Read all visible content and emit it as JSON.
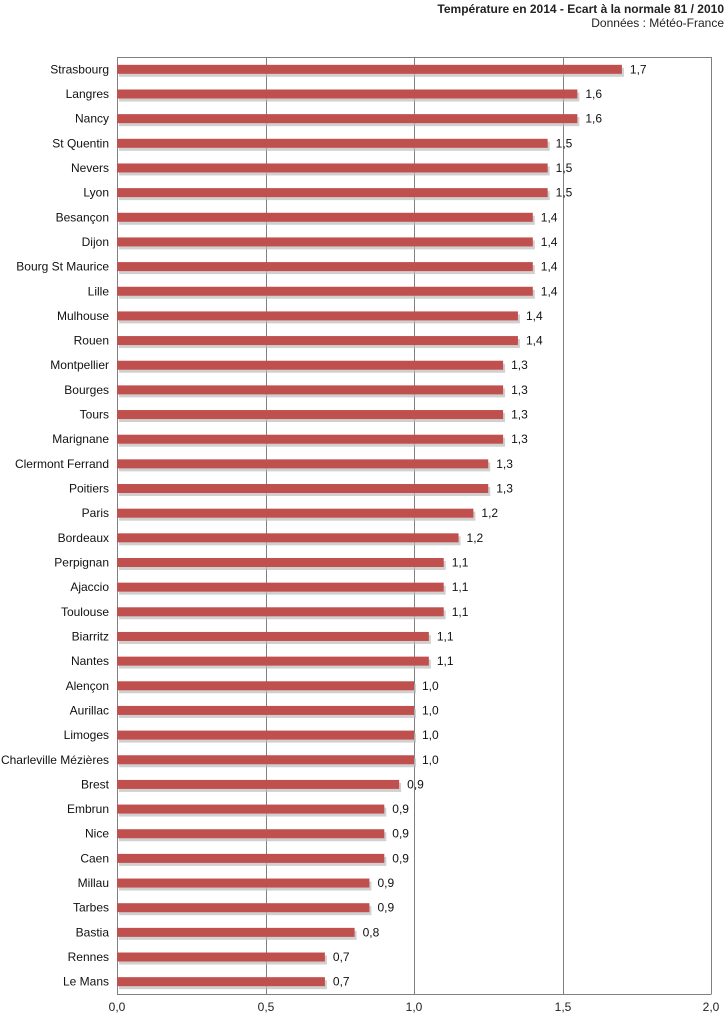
{
  "title": "Température en 2014 - Ecart à la normale 81 / 2010",
  "subtitle": "Données : Météo-France",
  "colors": {
    "bar": "#c0504d",
    "shadow": "#bcbcbc",
    "grid": "#808080",
    "axis": "#808080"
  },
  "chart_data": {
    "type": "bar",
    "orientation": "horizontal",
    "title": "Température en 2014 - Ecart à la normale 81 / 2010",
    "subtitle": "Données : Météo-France",
    "xlabel": "",
    "ylabel": "",
    "xlim": [
      0,
      2.0
    ],
    "x_ticks": [
      0,
      0.5,
      1.0,
      1.5,
      2.0
    ],
    "x_tick_labels": [
      "0,0",
      "0,5",
      "1,0",
      "1,5",
      "2,0"
    ],
    "grid": "vertical",
    "categories": [
      "Strasbourg",
      "Langres",
      "Nancy",
      "St Quentin",
      "Nevers",
      "Lyon",
      "Besançon",
      "Dijon",
      "Bourg St Maurice",
      "Lille",
      "Mulhouse",
      "Rouen",
      "Montpellier",
      "Bourges",
      "Tours",
      "Marignane",
      "Clermont Ferrand",
      "Poitiers",
      "Paris",
      "Bordeaux",
      "Perpignan",
      "Ajaccio",
      "Toulouse",
      "Biarritz",
      "Nantes",
      "Alençon",
      "Aurillac",
      "Limoges",
      "Charleville Mézières",
      "Brest",
      "Embrun",
      "Nice",
      "Caen",
      "Millau",
      "Tarbes",
      "Bastia",
      "Rennes",
      "Le Mans"
    ],
    "values": [
      1.7,
      1.55,
      1.55,
      1.45,
      1.45,
      1.45,
      1.4,
      1.4,
      1.4,
      1.4,
      1.35,
      1.35,
      1.3,
      1.3,
      1.3,
      1.3,
      1.25,
      1.25,
      1.2,
      1.15,
      1.1,
      1.1,
      1.1,
      1.05,
      1.05,
      1.0,
      1.0,
      1.0,
      1.0,
      0.95,
      0.9,
      0.9,
      0.9,
      0.85,
      0.85,
      0.8,
      0.7,
      0.7
    ],
    "data_labels": [
      "1,7",
      "1,6",
      "1,6",
      "1,5",
      "1,5",
      "1,5",
      "1,4",
      "1,4",
      "1,4",
      "1,4",
      "1,4",
      "1,4",
      "1,3",
      "1,3",
      "1,3",
      "1,3",
      "1,3",
      "1,3",
      "1,2",
      "1,2",
      "1,1",
      "1,1",
      "1,1",
      "1,1",
      "1,1",
      "1,0",
      "1,0",
      "1,0",
      "1,0",
      "0,9",
      "0,9",
      "0,9",
      "0,9",
      "0,9",
      "0,9",
      "0,8",
      "0,7",
      "0,7"
    ]
  }
}
